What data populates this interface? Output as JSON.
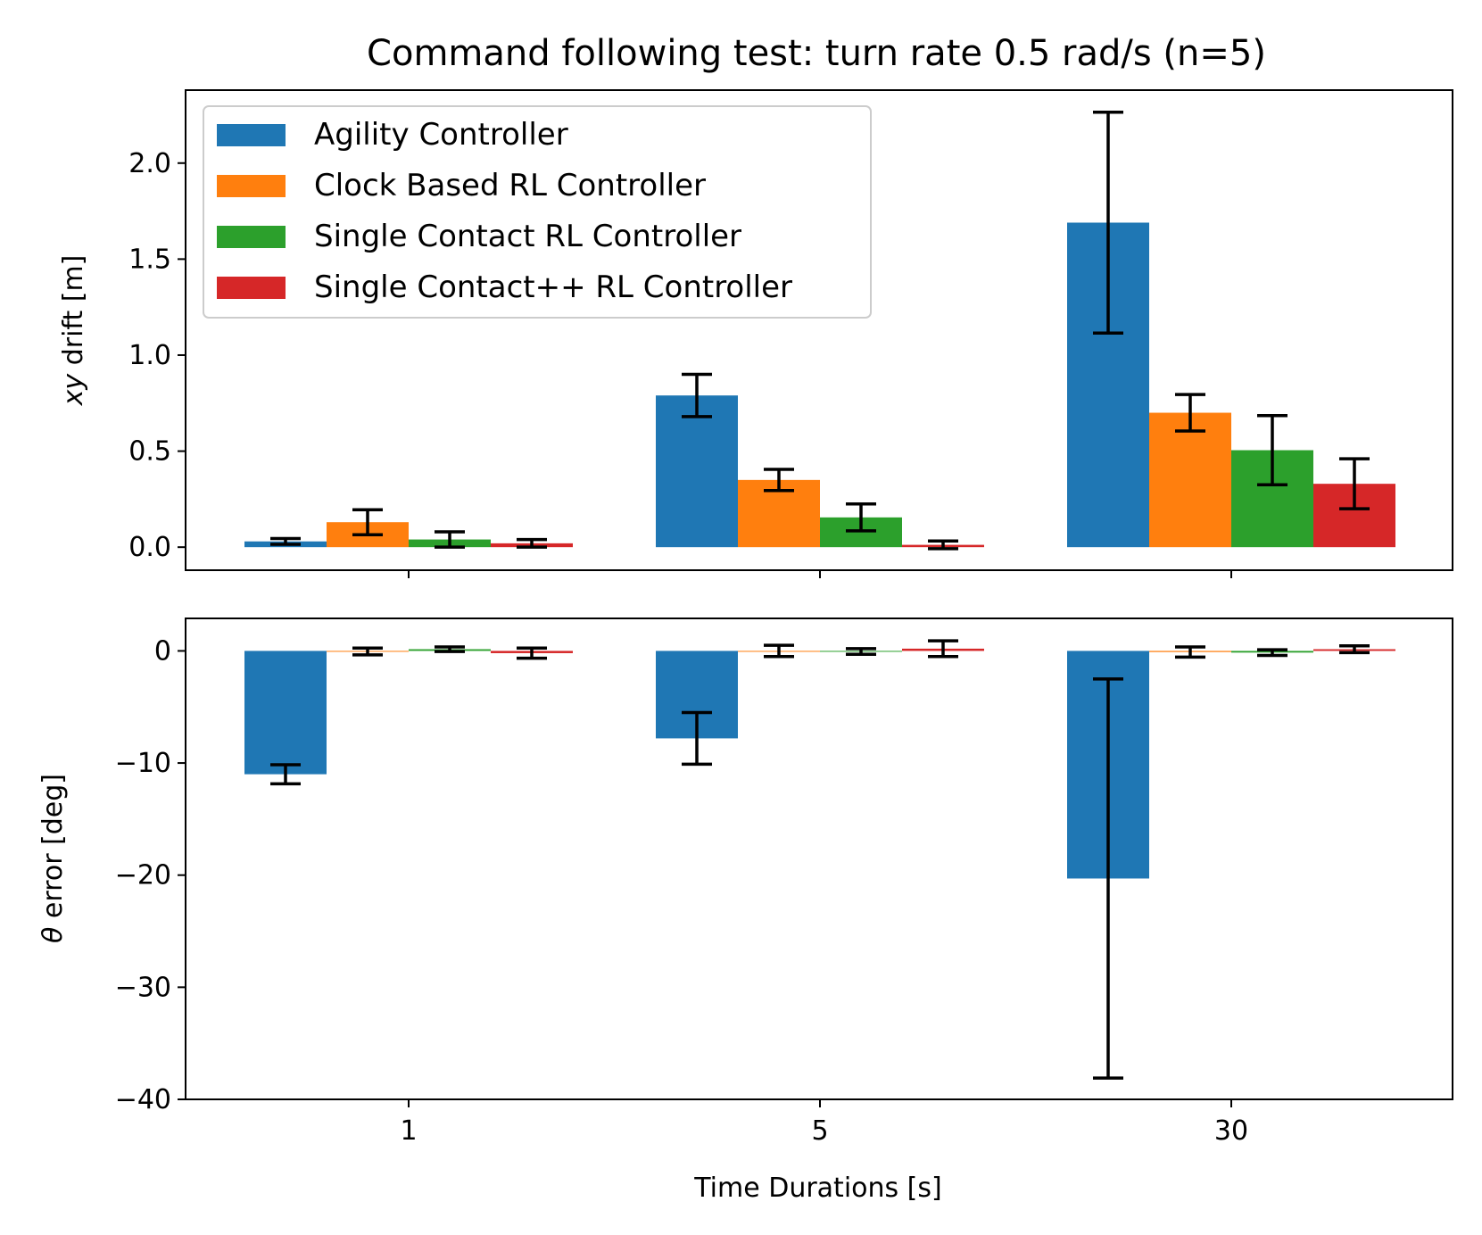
{
  "chart_data": [
    {
      "type": "bar",
      "title": "Command following test: turn rate 0.5 rad/s (n=5)",
      "xlabel": "",
      "ylabel_var": "xy",
      "ylabel_rest": " drift [m]",
      "categories": [
        "1",
        "5",
        "30"
      ],
      "ylim": [
        -0.12,
        2.38
      ],
      "yticks": [
        0.0,
        0.5,
        1.0,
        1.5,
        2.0
      ],
      "ytick_labels": [
        "0.0",
        "0.5",
        "1.0",
        "1.5",
        "2.0"
      ],
      "legend_position": "upper-left",
      "series": [
        {
          "name": "Agility Controller",
          "color": "#1f77b4",
          "values": [
            0.03,
            0.79,
            1.69
          ],
          "errors": [
            0.015,
            0.11,
            0.575
          ]
        },
        {
          "name": "Clock Based RL Controller",
          "color": "#ff7f0e",
          "values": [
            0.13,
            0.35,
            0.7
          ],
          "errors": [
            0.065,
            0.055,
            0.095
          ]
        },
        {
          "name": "Single Contact RL Controller",
          "color": "#2ca02c",
          "values": [
            0.04,
            0.155,
            0.505
          ],
          "errors": [
            0.04,
            0.07,
            0.18
          ]
        },
        {
          "name": "Single Contact++ RL Controller",
          "color": "#d62728",
          "values": [
            0.02,
            0.012,
            0.33
          ],
          "errors": [
            0.02,
            0.02,
            0.13
          ]
        }
      ]
    },
    {
      "type": "bar",
      "title": "",
      "xlabel": "Time Durations [s]",
      "ylabel_var": "θ",
      "ylabel_rest": " error [deg]",
      "categories": [
        "1",
        "5",
        "30"
      ],
      "ylim": [
        -40,
        2.9
      ],
      "yticks": [
        0,
        -10,
        -20,
        -30,
        -40
      ],
      "ytick_labels": [
        "0",
        "−10",
        "−20",
        "−30",
        "−40"
      ],
      "series": [
        {
          "name": "Agility Controller",
          "color": "#1f77b4",
          "values": [
            -11.0,
            -7.8,
            -20.3
          ],
          "errors": [
            0.85,
            2.3,
            17.8
          ]
        },
        {
          "name": "Clock Based RL Controller",
          "color": "#ff7f0e",
          "values": [
            -0.05,
            0.0,
            -0.1
          ],
          "errors": [
            0.3,
            0.5,
            0.45
          ]
        },
        {
          "name": "Single Contact RL Controller",
          "color": "#2ca02c",
          "values": [
            0.15,
            -0.05,
            -0.15
          ],
          "errors": [
            0.2,
            0.25,
            0.25
          ]
        },
        {
          "name": "Single Contact++ RL Controller",
          "color": "#d62728",
          "values": [
            -0.2,
            0.2,
            0.15
          ],
          "errors": [
            0.45,
            0.7,
            0.3
          ]
        }
      ]
    }
  ]
}
